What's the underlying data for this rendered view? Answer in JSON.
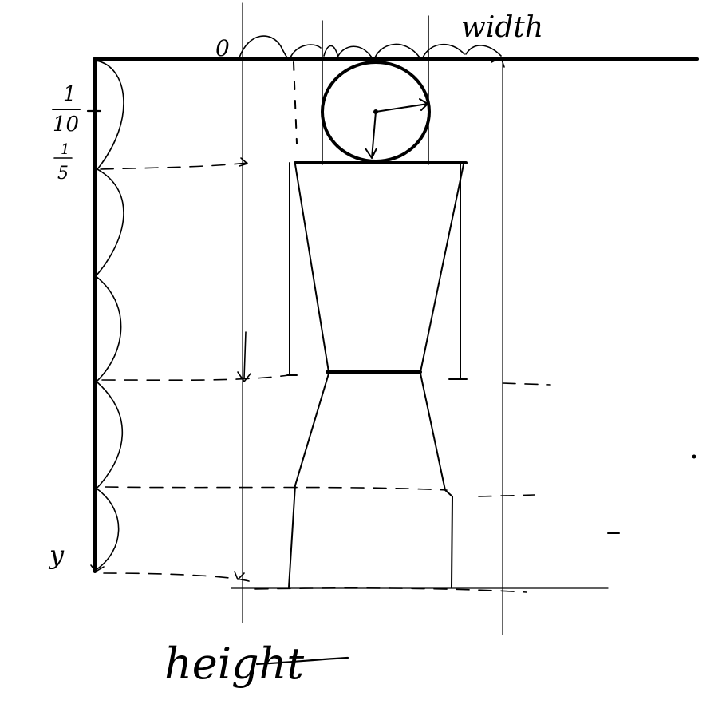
{
  "labels": {
    "origin": "0",
    "width": "width",
    "y": "y",
    "height": "height",
    "tick_tenth_num": "1",
    "tick_tenth_den": "10",
    "tick_fifth_num": "1",
    "tick_fifth_den": "5"
  },
  "colors": {
    "ink": "#000000",
    "background": "#ffffff"
  }
}
